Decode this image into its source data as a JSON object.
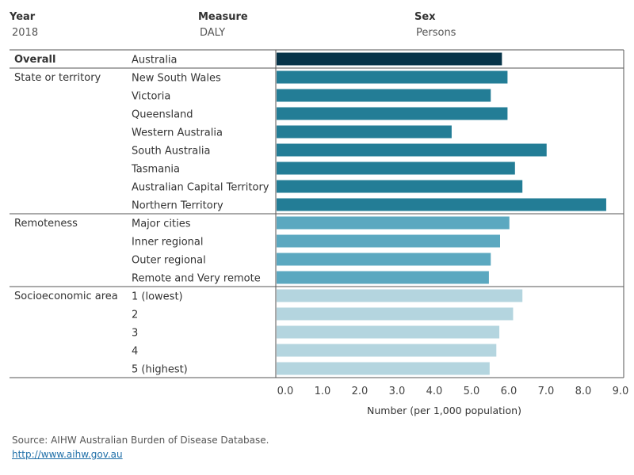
{
  "filters": {
    "year": {
      "label": "Year",
      "value": "2018"
    },
    "measure": {
      "label": "Measure",
      "value": "DALY"
    },
    "sex": {
      "label": "Sex",
      "value": "Persons"
    }
  },
  "chart_data": {
    "type": "bar",
    "orientation": "horizontal",
    "xlabel": "Number (per 1,000 population)",
    "xlim": [
      0,
      9.0
    ],
    "ticks": [
      "0.0",
      "1.0",
      "2.0",
      "3.0",
      "4.0",
      "5.0",
      "6.0",
      "7.0",
      "8.0",
      "9.0"
    ],
    "grid": false,
    "groups": [
      {
        "name": "Overall",
        "color": "#073449",
        "categories": [
          "Australia"
        ],
        "values": [
          6.05
        ]
      },
      {
        "name": "State or territory",
        "color": "#237d96",
        "categories": [
          "New South Wales",
          "Victoria",
          "Queensland",
          "Western Australia",
          "South Australia",
          "Tasmania",
          "Australian Capital Territory",
          "Northern Territory"
        ],
        "values": [
          6.2,
          5.75,
          6.2,
          4.7,
          7.25,
          6.4,
          6.6,
          8.85
        ]
      },
      {
        "name": "Remoteness",
        "color": "#5ba8c0",
        "categories": [
          "Major cities",
          "Inner regional",
          "Outer regional",
          "Remote and Very remote"
        ],
        "values": [
          6.25,
          6.0,
          5.75,
          5.7
        ]
      },
      {
        "name": "Socioeconomic area",
        "color": "#b4d5df",
        "categories": [
          "1 (lowest)",
          "2",
          "3",
          "4",
          "5 (highest)"
        ],
        "values": [
          6.6,
          6.35,
          5.98,
          5.9,
          5.72
        ]
      }
    ]
  },
  "footer": {
    "source": "Source: AIHW Australian Burden of Disease Database.",
    "link": "http://www.aihw.gov.au"
  }
}
